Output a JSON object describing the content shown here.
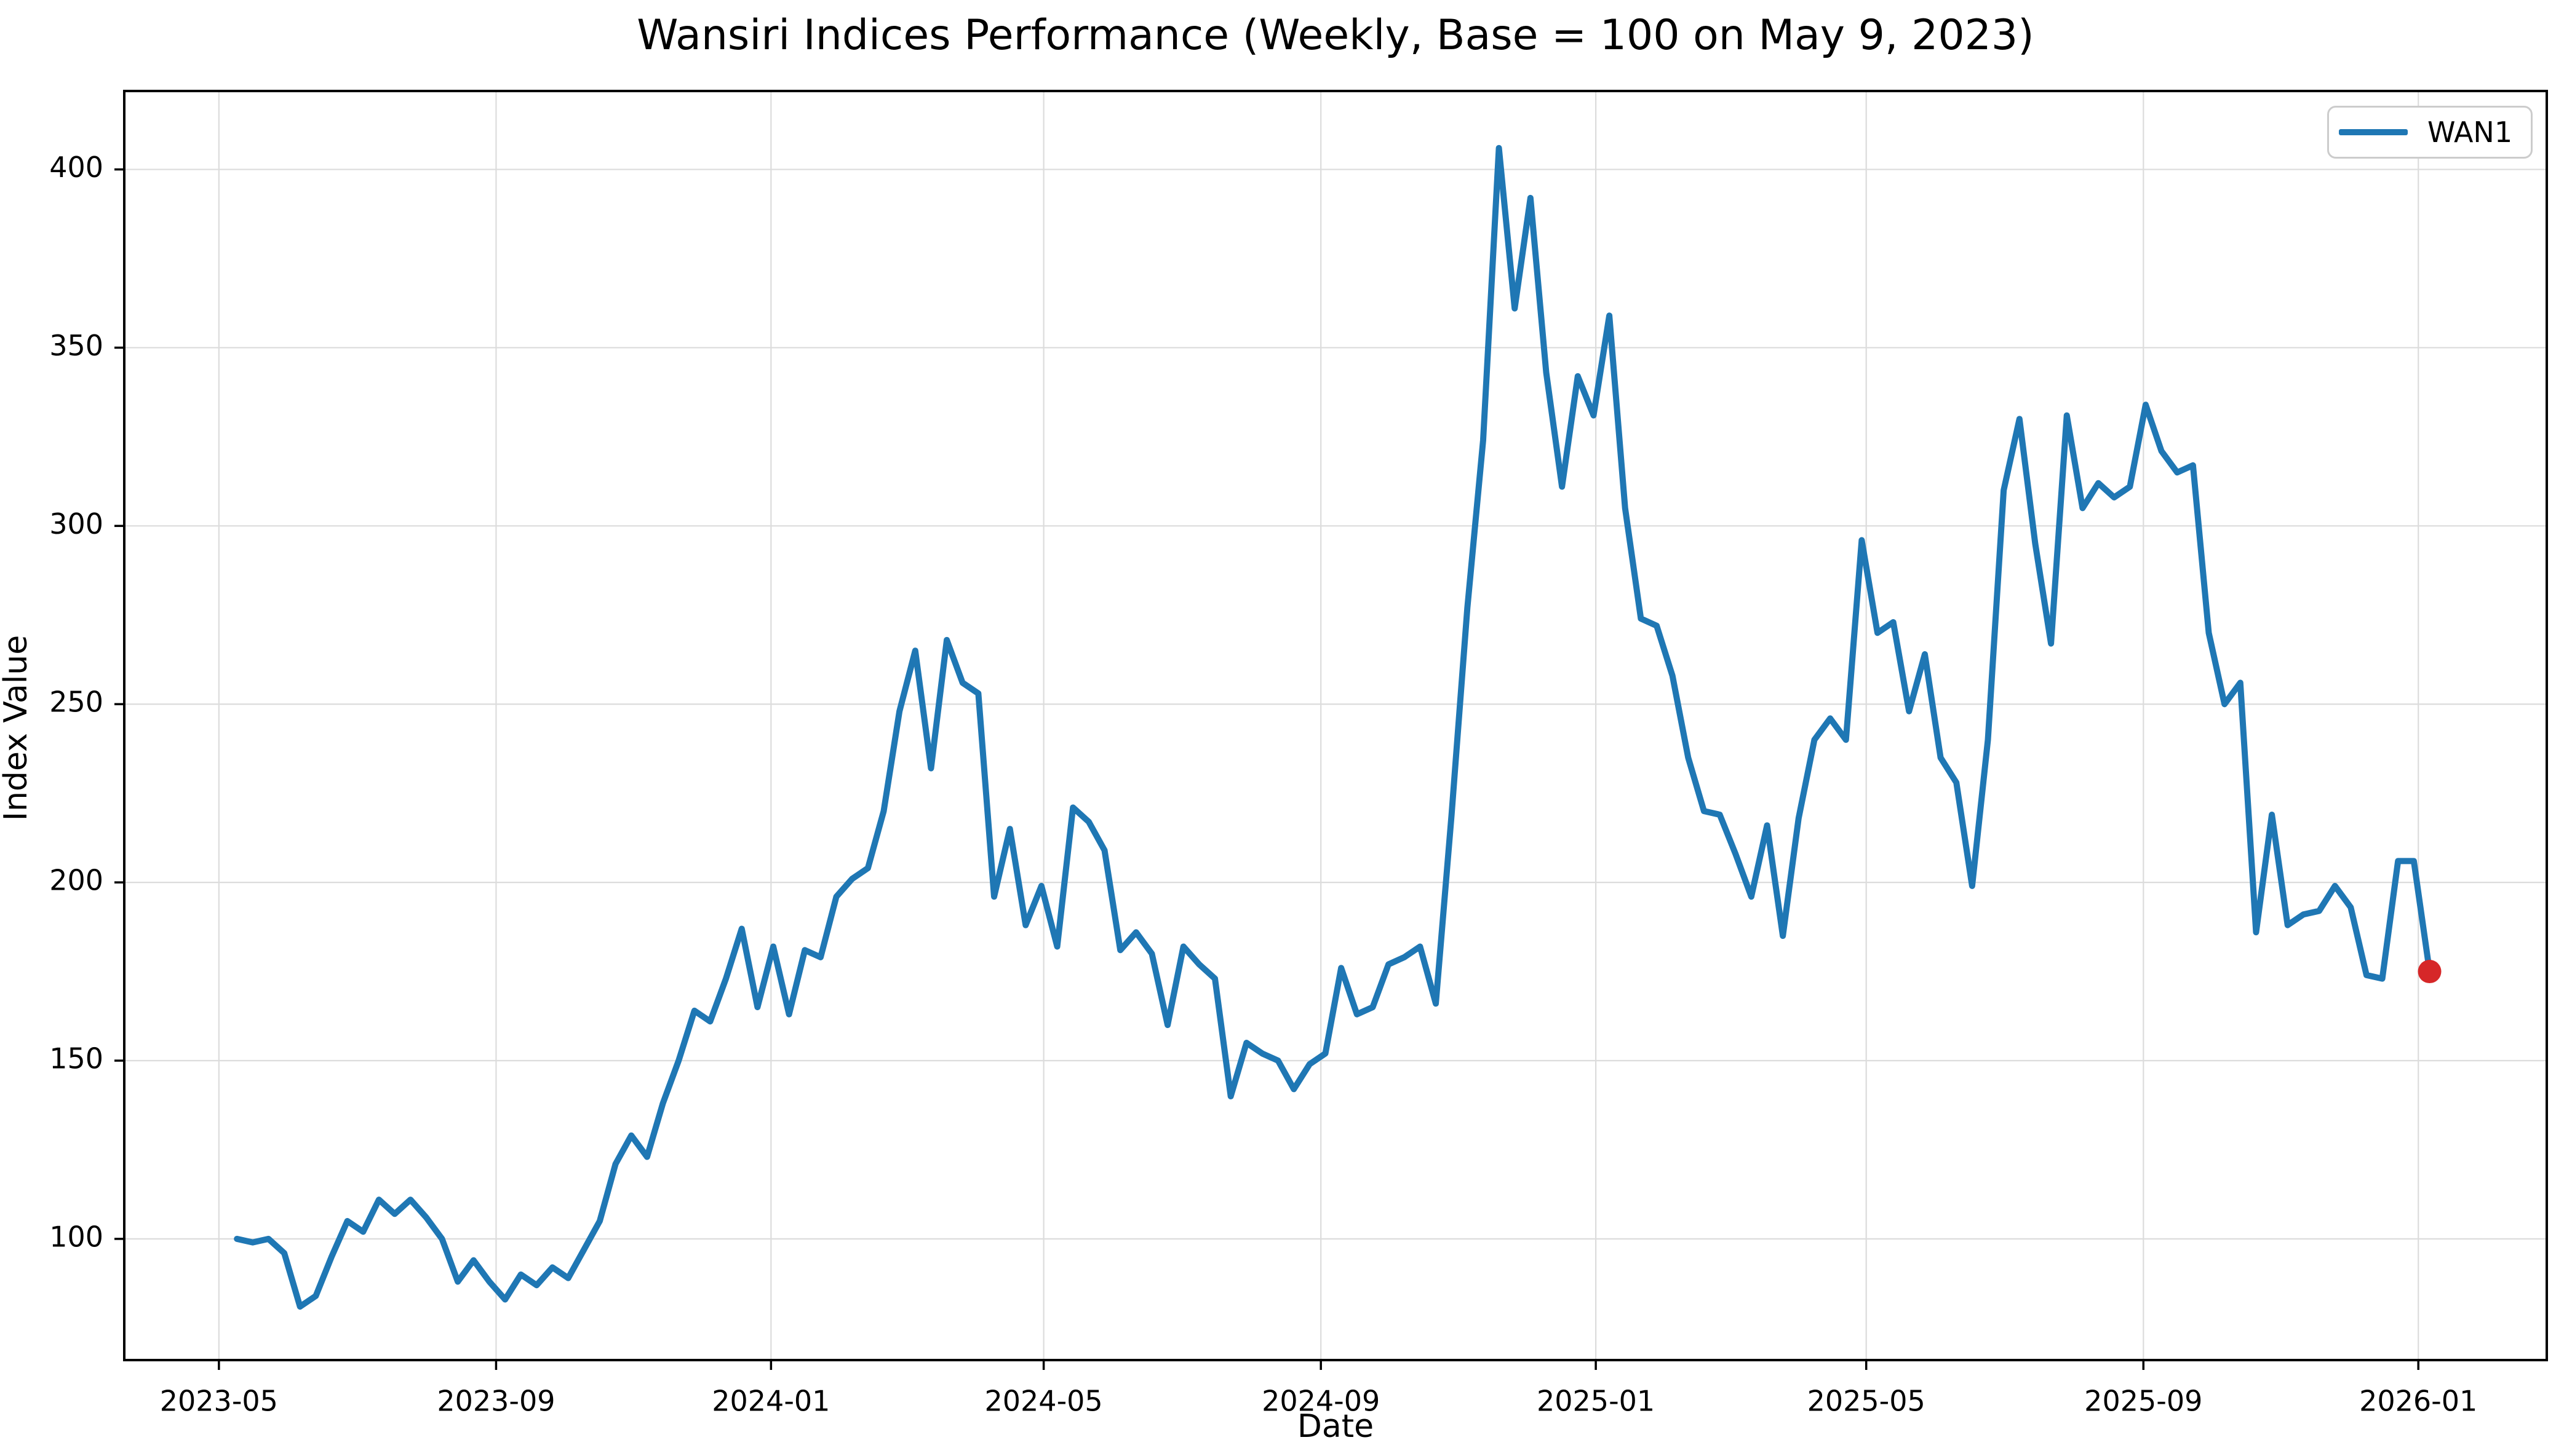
{
  "title": "Wansiri Indices Performance (Weekly, Base = 100 on May 9, 2023)",
  "chart_data": {
    "type": "line",
    "title": "Wansiri Indices Performance (Weekly, Base = 100 on May 9, 2023)",
    "xlabel": "Date",
    "ylabel": "Index Value",
    "legend": {
      "label": "WAN1",
      "position": "upper right"
    },
    "grid": true,
    "background_color": "#ffffff",
    "grid_color": "#dcdcdc",
    "spine_color": "#000000",
    "ylim": [
      66,
      422
    ],
    "xlim": [
      "2023-03-20",
      "2026-02-27"
    ],
    "yticks": [
      100,
      150,
      200,
      250,
      300,
      350,
      400
    ],
    "xticks": [
      {
        "label": "2023-05",
        "date": "2023-05-01"
      },
      {
        "label": "2023-09",
        "date": "2023-09-01"
      },
      {
        "label": "2024-01",
        "date": "2024-01-01"
      },
      {
        "label": "2024-05",
        "date": "2024-05-01"
      },
      {
        "label": "2024-09",
        "date": "2024-09-01"
      },
      {
        "label": "2025-01",
        "date": "2025-01-01"
      },
      {
        "label": "2025-05",
        "date": "2025-05-01"
      },
      {
        "label": "2025-09",
        "date": "2025-09-01"
      },
      {
        "label": "2026-01",
        "date": "2026-01-01"
      }
    ],
    "series": [
      {
        "name": "WAN1",
        "color": "#1f77b4",
        "line_width": 10,
        "start_date": "2023-05-09",
        "frequency": "weekly",
        "interval_days": 7,
        "values": [
          100,
          99,
          100,
          96,
          81,
          84,
          95,
          105,
          102,
          111,
          107,
          111,
          106,
          100,
          88,
          94,
          88,
          83,
          90,
          87,
          92,
          89,
          97,
          105,
          121,
          129,
          123,
          138,
          150,
          164,
          161,
          173,
          187,
          165,
          182,
          163,
          181,
          179,
          196,
          201,
          204,
          220,
          248,
          265,
          232,
          268,
          256,
          253,
          196,
          215,
          188,
          199,
          182,
          221,
          217,
          209,
          181,
          186,
          180,
          160,
          182,
          177,
          173,
          140,
          155,
          152,
          150,
          142,
          149,
          152,
          176,
          163,
          165,
          177,
          179,
          182,
          166,
          219,
          277,
          324,
          406,
          361,
          392,
          343,
          311,
          342,
          331,
          359,
          305,
          274,
          272,
          258,
          235,
          220,
          219,
          208,
          196,
          216,
          185,
          218,
          240,
          246,
          240,
          296,
          270,
          273,
          248,
          264,
          235,
          228,
          199,
          240,
          310,
          330,
          295,
          267,
          331,
          305,
          312,
          308,
          311,
          334,
          321,
          315,
          317,
          270,
          250,
          256,
          186,
          219,
          188,
          191,
          192,
          199,
          193,
          174,
          173,
          206,
          206,
          175
        ]
      }
    ],
    "endpoint_marker": {
      "series": "WAN1",
      "date": "2026-01-06",
      "value": 175,
      "color": "#d62728",
      "radius": 19
    }
  },
  "layout_note_values_visible_only": true
}
